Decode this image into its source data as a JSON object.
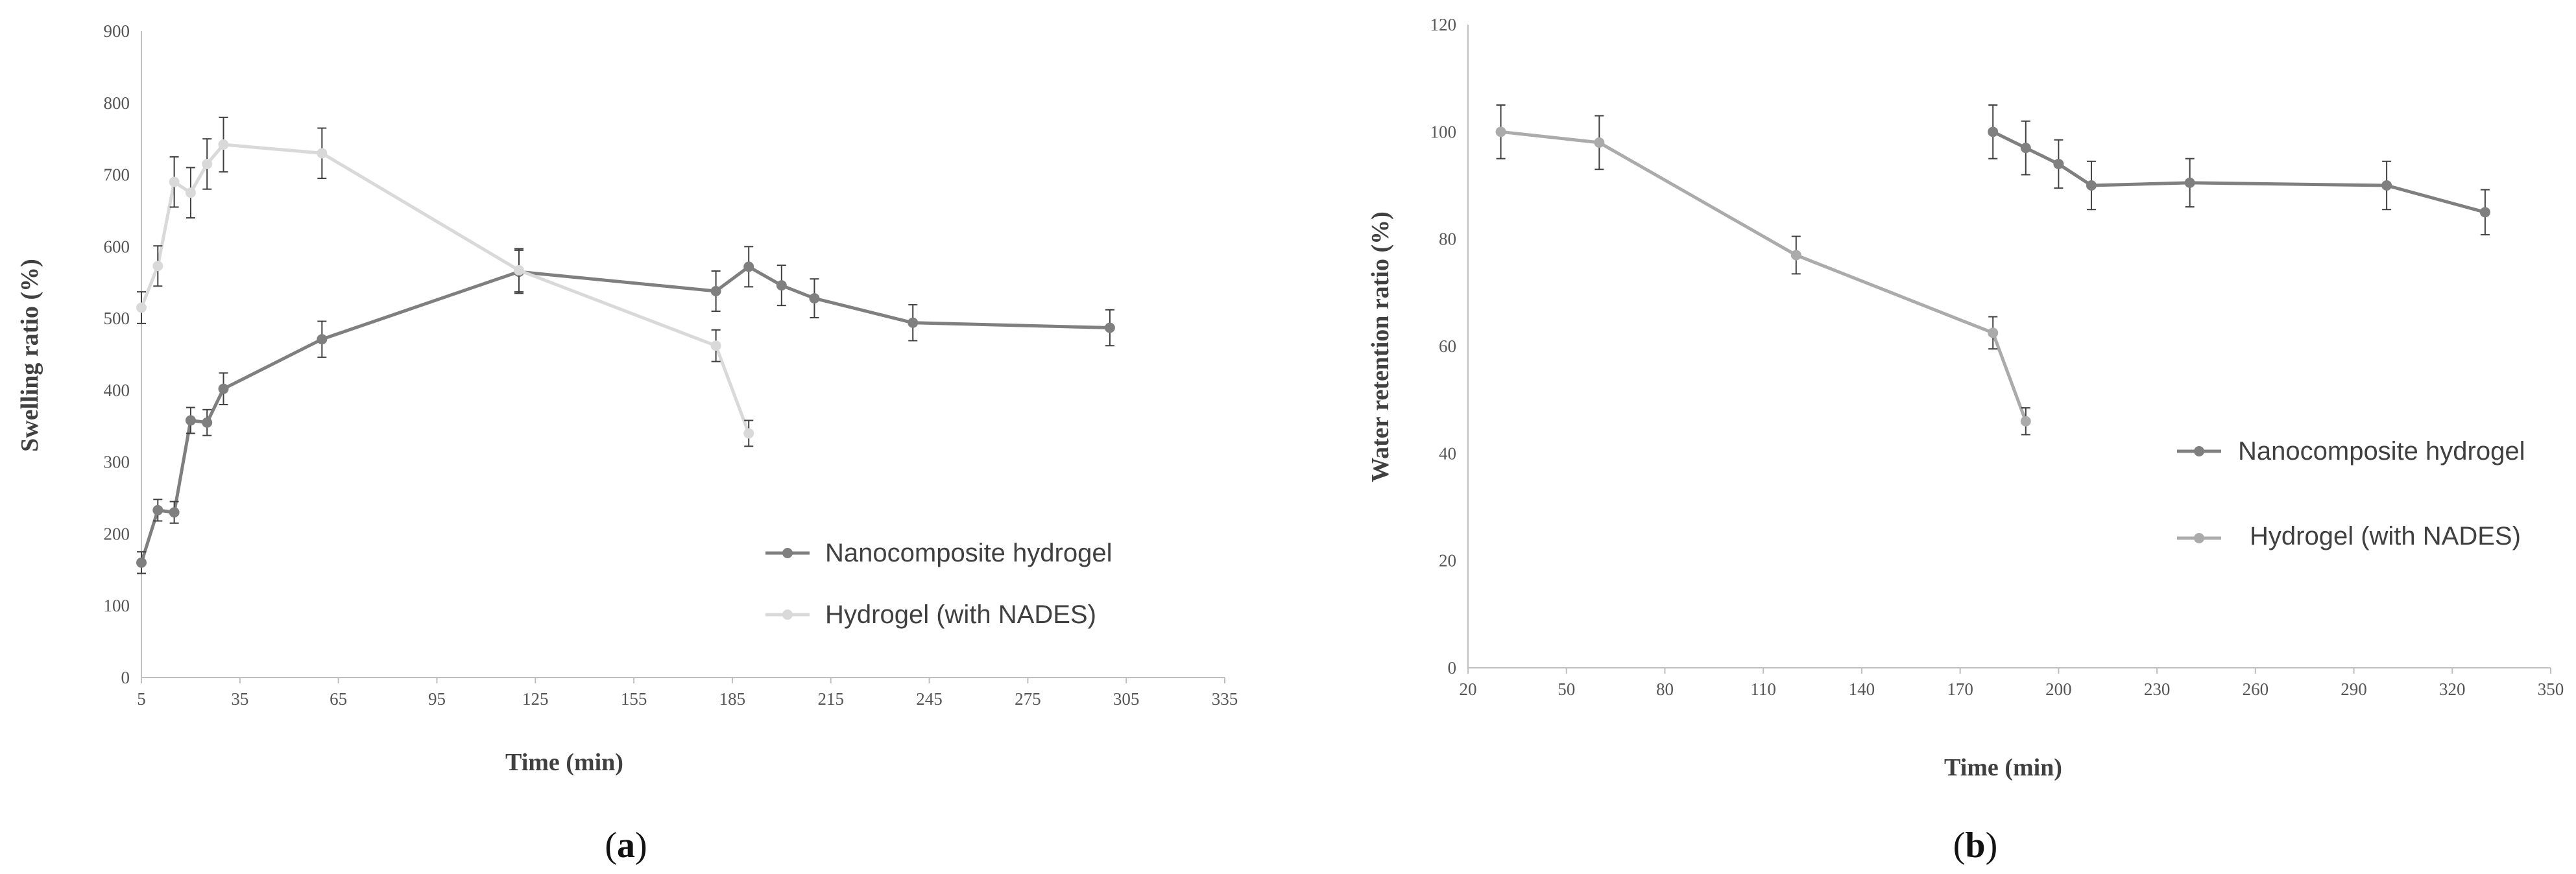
{
  "chart_data": [
    {
      "type": "line",
      "panel_label": "a",
      "title": "",
      "xlabel": "Time (min)",
      "ylabel": "Swelling  ratio (%)",
      "xlim": [
        5,
        335
      ],
      "ylim": [
        0,
        900
      ],
      "x_ticks": [
        "5",
        "35",
        "65",
        "95",
        "125",
        "155",
        "185",
        "215",
        "245",
        "275",
        "305",
        "335"
      ],
      "y_ticks": [
        "0",
        "100",
        "200",
        "300",
        "400",
        "500",
        "600",
        "700",
        "800",
        "900"
      ],
      "legend_position": "right",
      "series": [
        {
          "name": "Nanocomposite hydrogel",
          "color": "#7f7f7f",
          "x": [
            5,
            10,
            15,
            20,
            25,
            30,
            60,
            120,
            180,
            190,
            200,
            210,
            240,
            300
          ],
          "y": [
            160,
            233,
            230,
            358,
            355,
            402,
            471,
            565,
            538,
            572,
            546,
            528,
            494,
            487
          ],
          "err": [
            15,
            15,
            15,
            18,
            18,
            22,
            25,
            30,
            28,
            28,
            28,
            27,
            25,
            25
          ]
        },
        {
          "name": "Hydrogel (with NADES)",
          "color": "#d9d9d9",
          "x": [
            5,
            10,
            15,
            20,
            25,
            30,
            60,
            120,
            180,
            190
          ],
          "y": [
            515,
            573,
            690,
            675,
            715,
            742,
            730,
            567,
            462,
            340
          ],
          "err": [
            22,
            28,
            35,
            35,
            35,
            38,
            35,
            30,
            22,
            18
          ]
        }
      ]
    },
    {
      "type": "line",
      "panel_label": "b",
      "title": "",
      "xlabel": "Time (min)",
      "ylabel": "Water retention ratio (%)",
      "xlim": [
        20,
        350
      ],
      "ylim": [
        0,
        120
      ],
      "x_ticks": [
        "20",
        "50",
        "80",
        "110",
        "140",
        "170",
        "200",
        "230",
        "260",
        "290",
        "320",
        "350"
      ],
      "y_ticks": [
        "0",
        "20",
        "40",
        "60",
        "80",
        "100",
        "120"
      ],
      "legend_position": "right",
      "series": [
        {
          "name": "Nanocomposite hydrogel",
          "color": "#7f7f7f",
          "x": [
            180,
            190,
            200,
            210,
            240,
            300,
            330
          ],
          "y": [
            100,
            97,
            94,
            90,
            90.5,
            90,
            85
          ],
          "err": [
            5,
            5,
            4.5,
            4.5,
            4.5,
            4.5,
            4.2
          ]
        },
        {
          "name": "Hydrogel (with NADES)",
          "color": "#ababab",
          "x": [
            30,
            60,
            120,
            180,
            190
          ],
          "y": [
            100,
            98,
            77,
            62.5,
            46
          ],
          "err": [
            5,
            5,
            3.5,
            3,
            2.5
          ]
        }
      ]
    }
  ]
}
